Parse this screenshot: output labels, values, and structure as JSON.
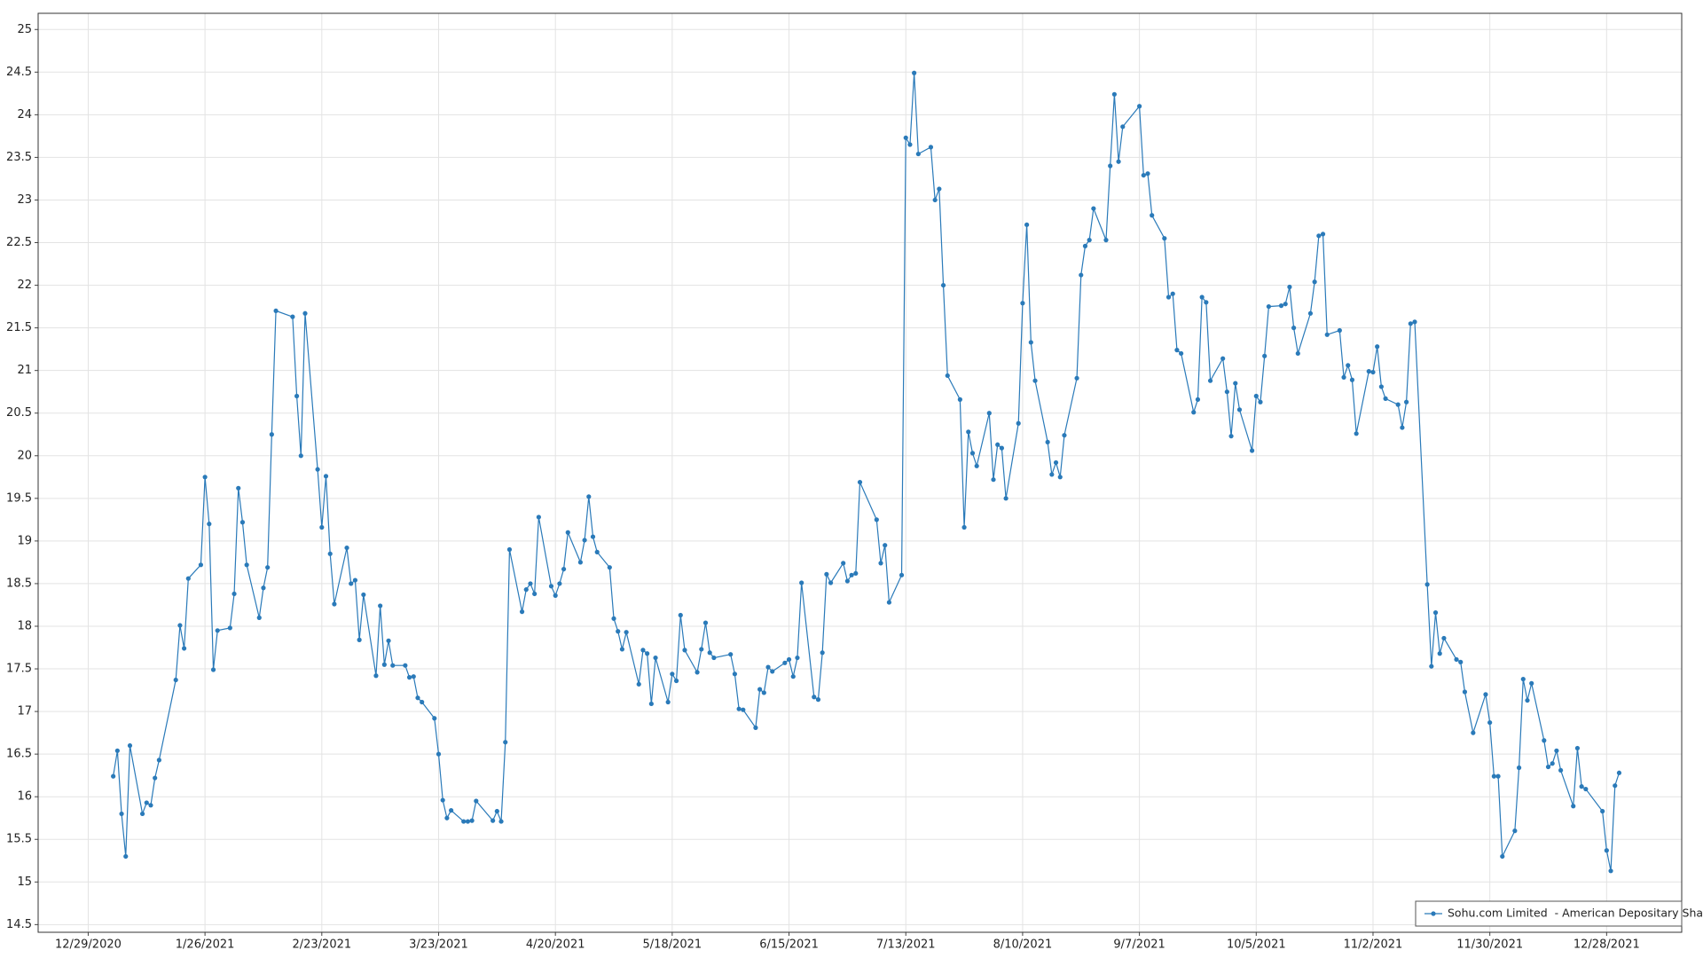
{
  "chart_data": {
    "type": "line",
    "x": [
      "2021-01-04",
      "2021-01-05",
      "2021-01-06",
      "2021-01-07",
      "2021-01-08",
      "2021-01-11",
      "2021-01-12",
      "2021-01-13",
      "2021-01-14",
      "2021-01-15",
      "2021-01-19",
      "2021-01-20",
      "2021-01-21",
      "2021-01-22",
      "2021-01-25",
      "2021-01-26",
      "2021-01-27",
      "2021-01-28",
      "2021-01-29",
      "2021-02-01",
      "2021-02-02",
      "2021-02-03",
      "2021-02-04",
      "2021-02-05",
      "2021-02-08",
      "2021-02-09",
      "2021-02-10",
      "2021-02-11",
      "2021-02-12",
      "2021-02-16",
      "2021-02-17",
      "2021-02-18",
      "2021-02-19",
      "2021-02-22",
      "2021-02-23",
      "2021-02-24",
      "2021-02-25",
      "2021-02-26",
      "2021-03-01",
      "2021-03-02",
      "2021-03-03",
      "2021-03-04",
      "2021-03-05",
      "2021-03-08",
      "2021-03-09",
      "2021-03-10",
      "2021-03-11",
      "2021-03-12",
      "2021-03-15",
      "2021-03-16",
      "2021-03-17",
      "2021-03-18",
      "2021-03-19",
      "2021-03-22",
      "2021-03-23",
      "2021-03-24",
      "2021-03-25",
      "2021-03-26",
      "2021-03-29",
      "2021-03-30",
      "2021-03-31",
      "2021-04-01",
      "2021-04-05",
      "2021-04-06",
      "2021-04-07",
      "2021-04-08",
      "2021-04-09",
      "2021-04-12",
      "2021-04-13",
      "2021-04-14",
      "2021-04-15",
      "2021-04-16",
      "2021-04-19",
      "2021-04-20",
      "2021-04-21",
      "2021-04-22",
      "2021-04-23",
      "2021-04-26",
      "2021-04-27",
      "2021-04-28",
      "2021-04-29",
      "2021-04-30",
      "2021-05-03",
      "2021-05-04",
      "2021-05-05",
      "2021-05-06",
      "2021-05-07",
      "2021-05-10",
      "2021-05-11",
      "2021-05-12",
      "2021-05-13",
      "2021-05-14",
      "2021-05-17",
      "2021-05-18",
      "2021-05-19",
      "2021-05-20",
      "2021-05-21",
      "2021-05-24",
      "2021-05-25",
      "2021-05-26",
      "2021-05-27",
      "2021-05-28",
      "2021-06-01",
      "2021-06-02",
      "2021-06-03",
      "2021-06-04",
      "2021-06-07",
      "2021-06-08",
      "2021-06-09",
      "2021-06-10",
      "2021-06-11",
      "2021-06-14",
      "2021-06-15",
      "2021-06-16",
      "2021-06-17",
      "2021-06-18",
      "2021-06-21",
      "2021-06-22",
      "2021-06-23",
      "2021-06-24",
      "2021-06-25",
      "2021-06-28",
      "2021-06-29",
      "2021-06-30",
      "2021-07-01",
      "2021-07-02",
      "2021-07-06",
      "2021-07-07",
      "2021-07-08",
      "2021-07-09",
      "2021-07-12",
      "2021-07-13",
      "2021-07-14",
      "2021-07-15",
      "2021-07-16",
      "2021-07-19",
      "2021-07-20",
      "2021-07-21",
      "2021-07-22",
      "2021-07-23",
      "2021-07-26",
      "2021-07-27",
      "2021-07-28",
      "2021-07-29",
      "2021-07-30",
      "2021-08-02",
      "2021-08-03",
      "2021-08-04",
      "2021-08-05",
      "2021-08-06",
      "2021-08-09",
      "2021-08-10",
      "2021-08-11",
      "2021-08-12",
      "2021-08-13",
      "2021-08-16",
      "2021-08-17",
      "2021-08-18",
      "2021-08-19",
      "2021-08-20",
      "2021-08-23",
      "2021-08-24",
      "2021-08-25",
      "2021-08-26",
      "2021-08-27",
      "2021-08-30",
      "2021-08-31",
      "2021-09-01",
      "2021-09-02",
      "2021-09-03",
      "2021-09-07",
      "2021-09-08",
      "2021-09-09",
      "2021-09-10",
      "2021-09-13",
      "2021-09-14",
      "2021-09-15",
      "2021-09-16",
      "2021-09-17",
      "2021-09-20",
      "2021-09-21",
      "2021-09-22",
      "2021-09-23",
      "2021-09-24",
      "2021-09-27",
      "2021-09-28",
      "2021-09-29",
      "2021-09-30",
      "2021-10-01",
      "2021-10-04",
      "2021-10-05",
      "2021-10-06",
      "2021-10-07",
      "2021-10-08",
      "2021-10-11",
      "2021-10-12",
      "2021-10-13",
      "2021-10-14",
      "2021-10-15",
      "2021-10-18",
      "2021-10-19",
      "2021-10-20",
      "2021-10-21",
      "2021-10-22",
      "2021-10-25",
      "2021-10-26",
      "2021-10-27",
      "2021-10-28",
      "2021-10-29",
      "2021-11-01",
      "2021-11-02",
      "2021-11-03",
      "2021-11-04",
      "2021-11-05",
      "2021-11-08",
      "2021-11-09",
      "2021-11-10",
      "2021-11-11",
      "2021-11-12",
      "2021-11-15",
      "2021-11-16",
      "2021-11-17",
      "2021-11-18",
      "2021-11-19",
      "2021-11-22",
      "2021-11-23",
      "2021-11-24",
      "2021-11-26",
      "2021-11-29",
      "2021-11-30",
      "2021-12-01",
      "2021-12-02",
      "2021-12-03",
      "2021-12-06",
      "2021-12-07",
      "2021-12-08",
      "2021-12-09",
      "2021-12-10",
      "2021-12-13",
      "2021-12-14",
      "2021-12-15",
      "2021-12-16",
      "2021-12-17",
      "2021-12-20",
      "2021-12-21",
      "2021-12-22",
      "2021-12-23",
      "2021-12-27",
      "2021-12-28",
      "2021-12-29",
      "2021-12-30",
      "2021-12-31"
    ],
    "series": [
      {
        "name": "Sohu.com Limited  - American Depositary Shares",
        "color": "#2a7ab9",
        "values": [
          16.24,
          16.54,
          15.8,
          15.3,
          16.6,
          15.8,
          15.93,
          15.9,
          16.22,
          16.43,
          17.37,
          18.01,
          17.74,
          18.56,
          18.72,
          19.75,
          19.2,
          17.49,
          17.95,
          17.98,
          18.38,
          19.62,
          19.22,
          18.72,
          18.1,
          18.45,
          18.69,
          20.25,
          21.7,
          21.63,
          20.7,
          20.0,
          21.67,
          19.84,
          19.16,
          19.76,
          18.85,
          18.26,
          18.92,
          18.5,
          18.54,
          17.84,
          18.37,
          17.42,
          18.24,
          17.55,
          17.83,
          17.54,
          17.54,
          17.4,
          17.41,
          17.16,
          17.11,
          16.92,
          16.5,
          15.96,
          15.75,
          15.84,
          15.71,
          15.71,
          15.72,
          15.95,
          15.72,
          15.83,
          15.71,
          16.64,
          18.9,
          18.17,
          18.43,
          18.5,
          18.38,
          19.28,
          18.47,
          18.36,
          18.5,
          18.67,
          19.1,
          18.75,
          19.01,
          19.52,
          19.05,
          18.87,
          18.69,
          18.09,
          17.94,
          17.73,
          17.93,
          17.32,
          17.72,
          17.68,
          17.09,
          17.63,
          17.11,
          17.44,
          17.36,
          18.13,
          17.72,
          17.46,
          17.73,
          18.04,
          17.69,
          17.63,
          17.67,
          17.44,
          17.03,
          17.02,
          16.81,
          17.26,
          17.22,
          17.52,
          17.47,
          17.57,
          17.61,
          17.41,
          17.63,
          18.51,
          17.17,
          17.14,
          17.69,
          18.61,
          18.51,
          18.74,
          18.53,
          18.6,
          18.62,
          19.69,
          19.25,
          18.74,
          18.95,
          18.28,
          18.6,
          23.73,
          23.65,
          24.49,
          23.54,
          23.62,
          23.0,
          23.13,
          22.0,
          20.94,
          20.66,
          19.16,
          20.28,
          20.03,
          19.88,
          20.5,
          19.72,
          20.13,
          20.09,
          19.5,
          20.38,
          21.79,
          22.71,
          21.33,
          20.88,
          20.16,
          19.78,
          19.92,
          19.75,
          20.24,
          20.91,
          22.12,
          22.46,
          22.53,
          22.9,
          22.53,
          23.4,
          24.24,
          23.45,
          23.86,
          24.1,
          23.29,
          23.31,
          22.82,
          22.55,
          21.86,
          21.9,
          21.24,
          21.2,
          20.51,
          20.66,
          21.86,
          21.8,
          20.88,
          21.14,
          20.75,
          20.23,
          20.85,
          20.54,
          20.06,
          20.7,
          20.63,
          21.17,
          21.75,
          21.76,
          21.78,
          21.98,
          21.5,
          21.2,
          21.67,
          22.04,
          22.58,
          22.6,
          21.42,
          21.47,
          20.92,
          21.06,
          20.89,
          20.26,
          20.99,
          20.98,
          21.28,
          20.81,
          20.67,
          20.6,
          20.33,
          20.63,
          21.55,
          21.57,
          18.49,
          17.53,
          18.16,
          17.68,
          17.86,
          17.61,
          17.58,
          17.23,
          16.75,
          17.2,
          16.87,
          16.24,
          16.24,
          15.3,
          15.6,
          16.34,
          17.38,
          17.13,
          17.33,
          16.66,
          16.35,
          16.39,
          16.54,
          16.31,
          15.89,
          16.57,
          16.12,
          16.09,
          15.83,
          15.37,
          15.13,
          16.13,
          16.28
        ]
      }
    ],
    "xlim": [
      "2020-12-17",
      "2022-01-15"
    ],
    "xticks": [
      {
        "value": "2020-12-29",
        "label": "12/29/2020"
      },
      {
        "value": "2021-01-26",
        "label": "1/26/2021"
      },
      {
        "value": "2021-02-23",
        "label": "2/23/2021"
      },
      {
        "value": "2021-03-23",
        "label": "3/23/2021"
      },
      {
        "value": "2021-04-20",
        "label": "4/20/2021"
      },
      {
        "value": "2021-05-18",
        "label": "5/18/2021"
      },
      {
        "value": "2021-06-15",
        "label": "6/15/2021"
      },
      {
        "value": "2021-07-13",
        "label": "7/13/2021"
      },
      {
        "value": "2021-08-10",
        "label": "8/10/2021"
      },
      {
        "value": "2021-09-07",
        "label": "9/7/2021"
      },
      {
        "value": "2021-10-05",
        "label": "10/5/2021"
      },
      {
        "value": "2021-11-02",
        "label": "11/2/2021"
      },
      {
        "value": "2021-11-30",
        "label": "11/30/2021"
      },
      {
        "value": "2021-12-28",
        "label": "12/28/2021"
      }
    ],
    "ylim": [
      14.41,
      25.19
    ],
    "yticks": [
      14.5,
      15,
      15.5,
      16,
      16.5,
      17,
      17.5,
      18,
      18.5,
      19,
      19.5,
      20,
      20.5,
      21,
      21.5,
      22,
      22.5,
      23,
      23.5,
      24,
      24.5,
      25
    ],
    "grid": true,
    "legend": "lower right",
    "markers": true
  }
}
